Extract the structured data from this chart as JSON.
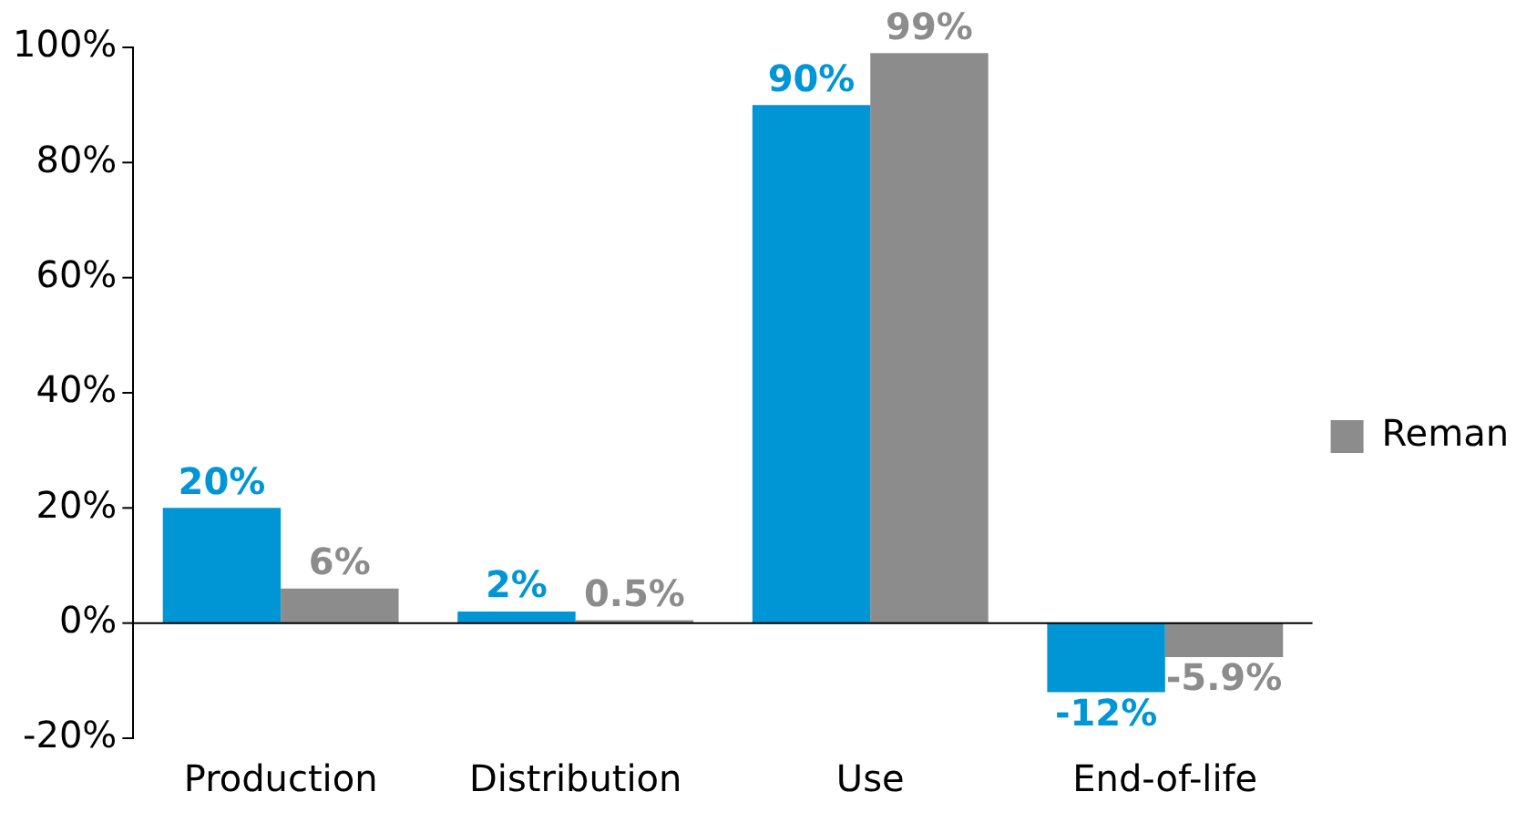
{
  "chart_data": {
    "type": "bar",
    "categories": [
      "Production",
      "Distribution",
      "Use",
      "End-of-life"
    ],
    "series": [
      {
        "color": "#0096d6",
        "values": [
          20,
          2,
          90,
          -12
        ],
        "value_labels": [
          "20%",
          "2%",
          "90%",
          "-12%"
        ]
      },
      {
        "name": "Reman",
        "color": "#8c8c8c",
        "values": [
          6,
          0.5,
          99,
          -5.9
        ],
        "value_labels": [
          "6%",
          "0.5%",
          "99%",
          "-5.9%"
        ]
      }
    ],
    "ylim": [
      -20,
      100
    ],
    "yticks": [
      {
        "value": -20,
        "label": "-20%"
      },
      {
        "value": 0,
        "label": "0%"
      },
      {
        "value": 20,
        "label": "20%"
      },
      {
        "value": 40,
        "label": "40%"
      },
      {
        "value": 60,
        "label": "60%"
      },
      {
        "value": 80,
        "label": "80%"
      },
      {
        "value": 100,
        "label": "100%"
      }
    ],
    "ref_lines": [
      {
        "axis": "y",
        "value": 0,
        "color": "#000000"
      }
    ],
    "grid": false,
    "legend": "right"
  }
}
